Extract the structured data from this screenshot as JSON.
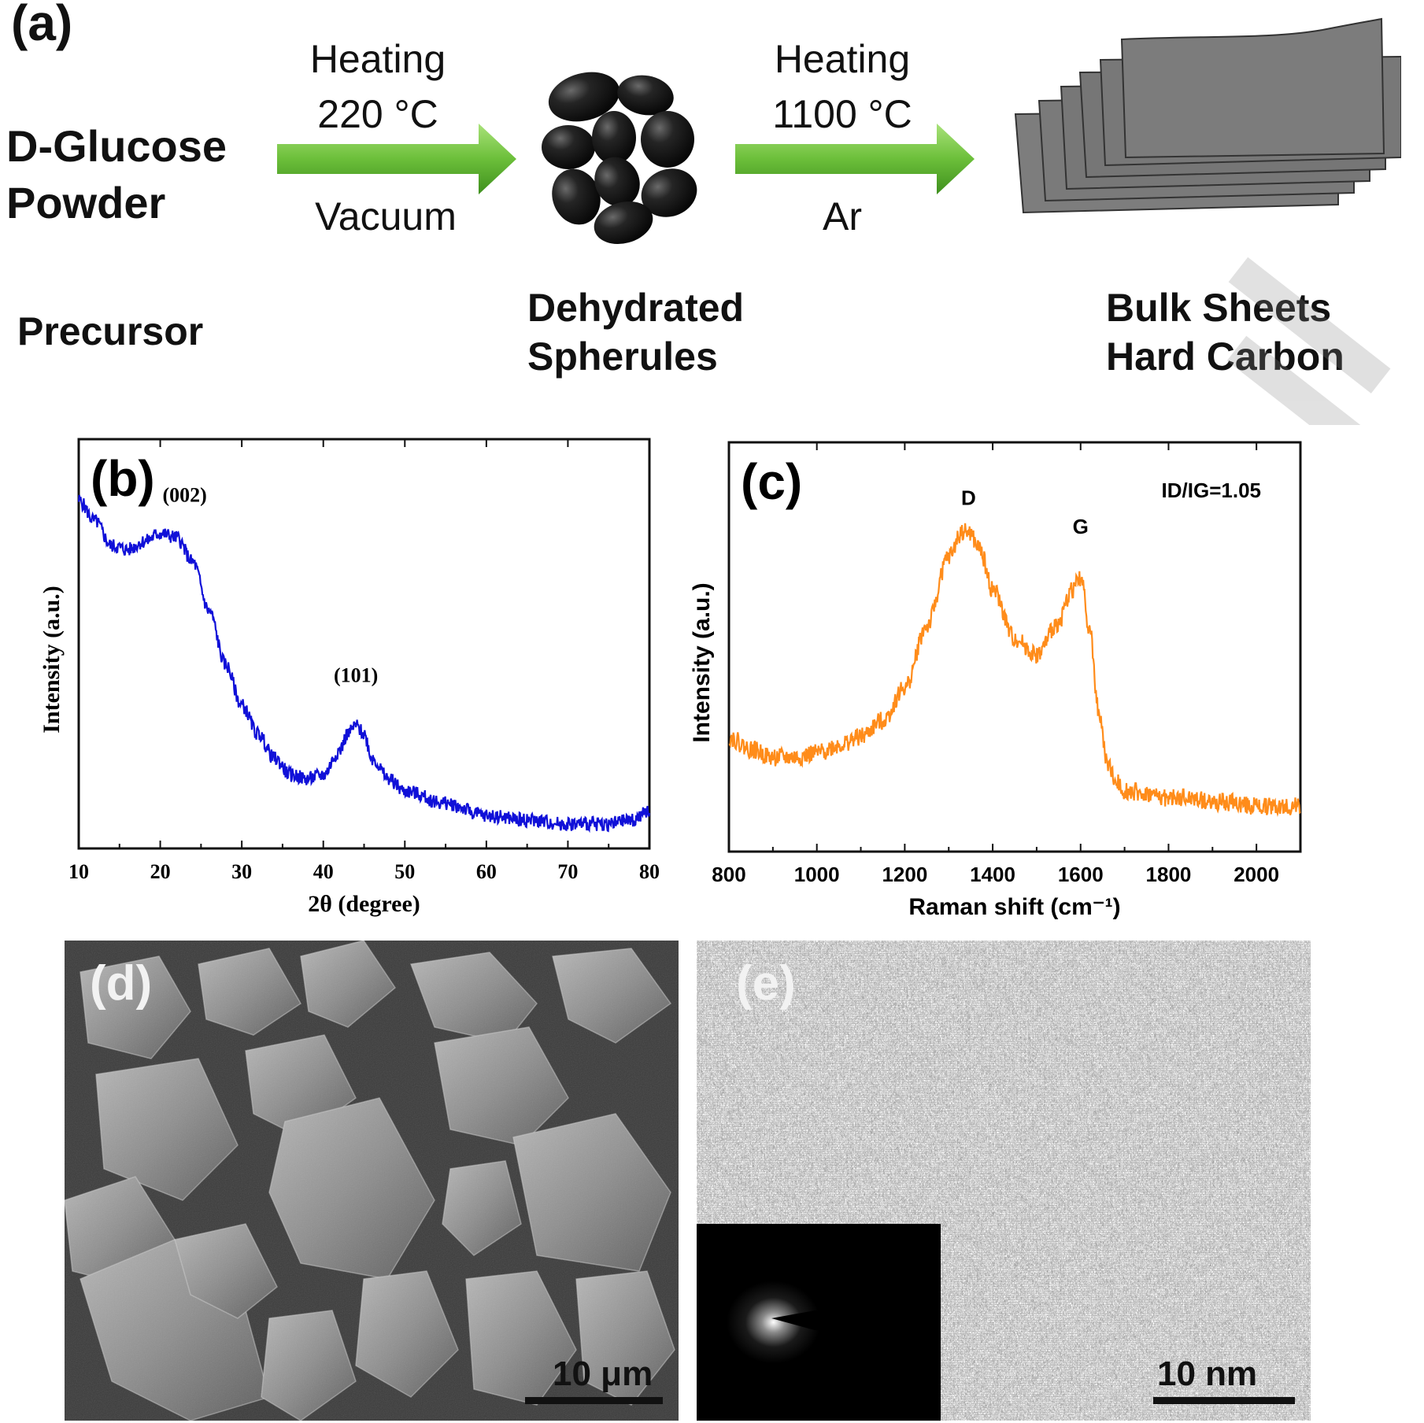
{
  "schema": {
    "panel_label": "(a)",
    "start_line1": "D-Glucose",
    "start_line2": "Powder",
    "step1": {
      "top1": "Heating",
      "top2": "220 °C",
      "bottom": "Vacuum"
    },
    "step2": {
      "top1": "Heating",
      "top2": "1100 °C",
      "bottom": "Ar"
    },
    "label_precursor": "Precursor",
    "label_mid1": "Dehydrated",
    "label_mid2": "Spherules",
    "label_end1": "Bulk Sheets",
    "label_end2": "Hard Carbon",
    "arrow_color": "#6cbf3a",
    "sheet_color": "#7a7a7a",
    "spherule_color": "#1a1a1a"
  },
  "chart_data": [
    {
      "panel_label": "(b)",
      "type": "line",
      "xlabel": "2θ (degree)",
      "ylabel": "Intensity (a.u.)",
      "xlim": [
        10,
        80
      ],
      "ylim": [
        0,
        100
      ],
      "xticks": [
        10,
        20,
        30,
        40,
        50,
        60,
        70,
        80
      ],
      "line_color": "#1010d8",
      "annotations": [
        {
          "text": "(002)",
          "x": 23,
          "y": 82
        },
        {
          "text": "(101)",
          "x": 44,
          "y": 38
        }
      ],
      "x": [
        10,
        12,
        14,
        16,
        18,
        20,
        22,
        24,
        26,
        28,
        30,
        32,
        34,
        36,
        38,
        40,
        42,
        43,
        44,
        45,
        46,
        48,
        50,
        55,
        60,
        65,
        70,
        75,
        78,
        80
      ],
      "y": [
        85,
        80,
        74,
        73,
        75,
        77,
        76,
        70,
        58,
        45,
        35,
        28,
        22,
        18,
        17,
        18,
        24,
        28,
        30,
        28,
        22,
        17,
        14,
        11,
        8,
        7,
        6,
        6,
        7,
        9
      ]
    },
    {
      "panel_label": "(c)",
      "type": "line",
      "xlabel": "Raman shift (cm⁻¹)",
      "ylabel": "Intensity (a.u.)",
      "xlim": [
        800,
        2100
      ],
      "ylim": [
        0,
        100
      ],
      "xticks": [
        800,
        1000,
        1200,
        1400,
        1600,
        1800,
        2000
      ],
      "line_color": "#ff8c1a",
      "ratio_label": "ID/IG=1.05",
      "annotations": [
        {
          "text": "D",
          "x": 1345,
          "y": 82
        },
        {
          "text": "G",
          "x": 1600,
          "y": 75
        }
      ],
      "x": [
        800,
        850,
        900,
        950,
        1000,
        1050,
        1100,
        1150,
        1200,
        1250,
        1300,
        1330,
        1345,
        1370,
        1400,
        1450,
        1500,
        1550,
        1580,
        1600,
        1620,
        1640,
        1660,
        1680,
        1700,
        1750,
        1800,
        1850,
        1900,
        1950,
        2000,
        2050,
        2100
      ],
      "y": [
        28,
        25,
        23,
        23,
        24,
        26,
        28,
        32,
        40,
        55,
        72,
        78,
        78,
        74,
        64,
        52,
        48,
        56,
        64,
        67,
        55,
        35,
        22,
        17,
        15,
        14,
        13,
        13,
        12,
        12,
        11,
        11,
        11
      ]
    }
  ],
  "sem": {
    "panel_label": "(d)",
    "scale_label": "10 μm"
  },
  "tem": {
    "panel_label": "(e)",
    "scale_label": "10 nm"
  }
}
